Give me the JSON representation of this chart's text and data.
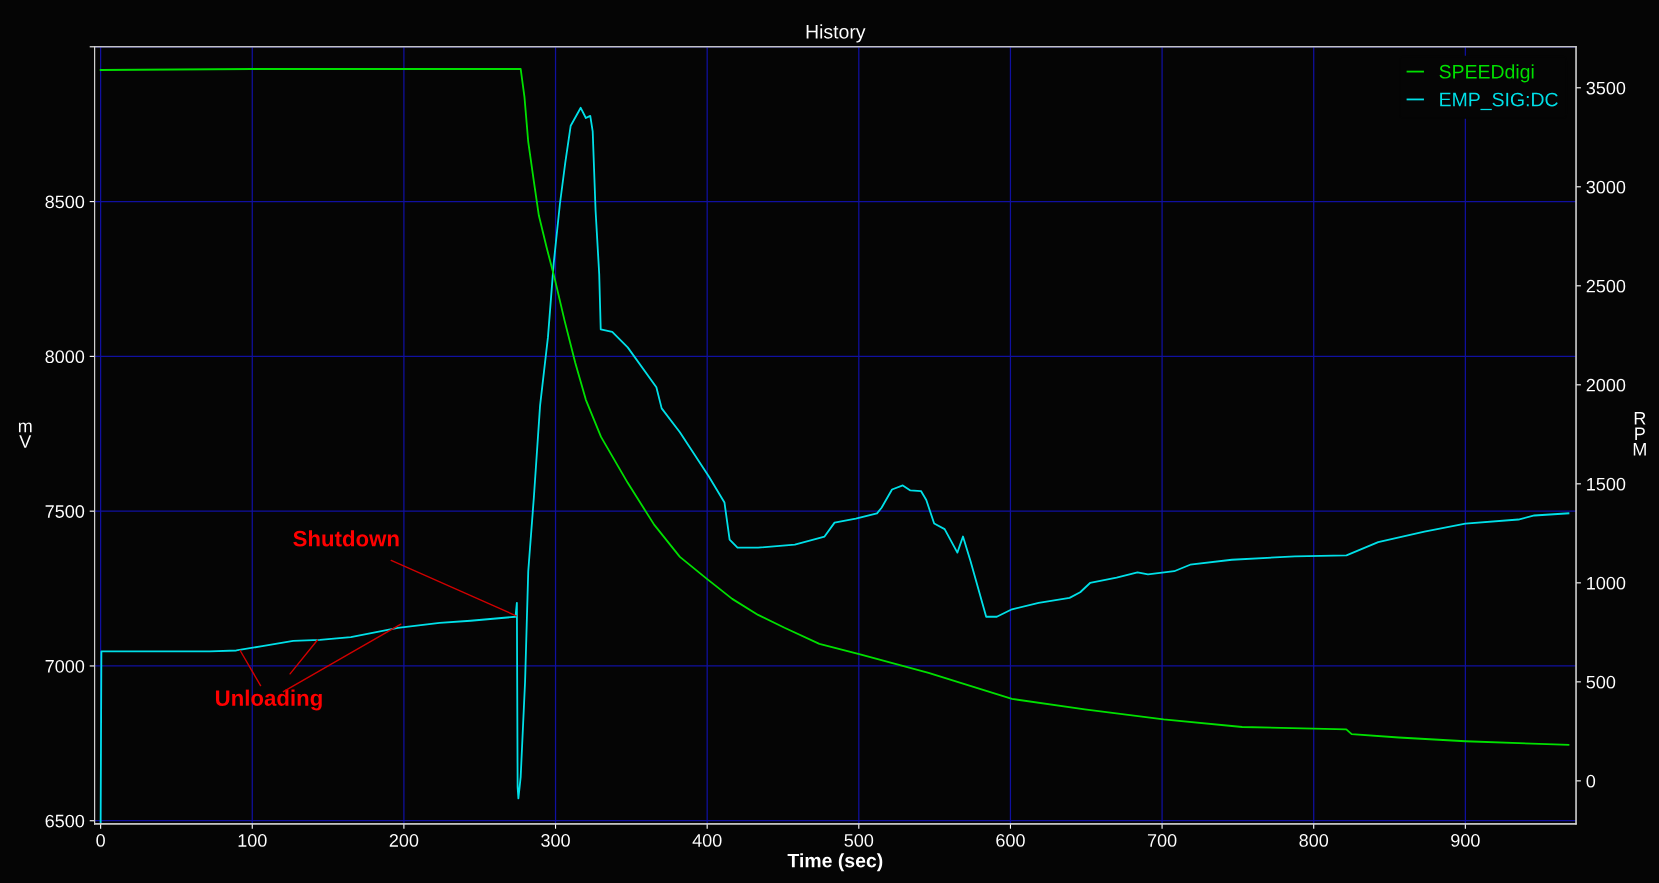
{
  "chart_data": {
    "type": "line",
    "title": "History",
    "xlabel": "Time (sec)",
    "ylabel": "m\nV",
    "y2label": "R\nP\nM",
    "xlim": [
      -4,
      973
    ],
    "xticks": [
      0,
      100,
      200,
      300,
      400,
      500,
      600,
      700,
      800,
      900
    ],
    "ylim": [
      6490,
      9000
    ],
    "yticks": [
      6500,
      7000,
      7500,
      8000,
      8500,
      {
        "value": 9000,
        "label": null
      }
    ],
    "y2lim": [
      -217,
      3707
    ],
    "y2ticks": [
      0,
      500,
      1000,
      1500,
      2000,
      2500,
      3000,
      3500
    ],
    "grid": true,
    "legend": "top right",
    "line_style": "solid",
    "marker": "none",
    "series": [
      {
        "name": "SPEEDdigi",
        "color": "#00e000",
        "axis": "y2",
        "x": [
          0,
          100,
          200,
          277,
          279.5,
          282,
          285.7,
          289,
          294,
          299.5,
          306,
          313,
          320,
          330,
          347.6,
          365,
          382,
          399,
          416.5,
          433.6,
          451,
          474,
          501.5,
          546,
          601,
          649,
          701,
          752.8,
          821.5,
          825,
          856,
          900,
          968
        ],
        "values": [
          3590,
          3595,
          3595,
          3595,
          3454,
          3227,
          3027,
          2855,
          2697,
          2535,
          2323,
          2111,
          1924,
          1737,
          1505,
          1294,
          1131,
          1025,
          919,
          838,
          773,
          692,
          638,
          545,
          414,
          361,
          311,
          272,
          260,
          236,
          219,
          200,
          182
        ]
      },
      {
        "name": "EMP_SIG:DC",
        "color": "#00e0e8",
        "x": [
          0,
          0.5,
          72,
          89.5,
          106.6,
          127,
          144.6,
          165,
          196,
          223.6,
          244,
          273.6,
          274.5,
          275,
          275.5,
          277,
          279.9,
          282,
          285.7,
          289.8,
          295,
          298.8,
          302.9,
          306.4,
          310,
          316.6,
          320,
          322.9,
          324.5,
          326.4,
          328.8,
          329.8,
          337.4,
          347.6,
          366.5,
          370,
          382,
          401,
          411.4,
          414.8,
          420,
          433.6,
          457.8,
          477.4,
          484,
          498,
          512,
          515,
          521.9,
          529,
          534,
          541,
          544.5,
          549.7,
          556.6,
          565,
          568.7,
          573.6,
          584,
          591,
          601,
          618.6,
          639,
          646,
          652.5,
          670,
          683.8,
          690.7,
          708,
          718.5,
          746,
          787.6,
          821.6,
          842.5,
          873,
          900,
          935,
          945.5,
          968
        ],
        "values": [
          6490,
          7047,
          7047,
          7050,
          7064,
          7081,
          7084,
          7093,
          7123,
          7139,
          7146,
          7159,
          7204,
          6608,
          6572,
          6641,
          6948,
          7306,
          7544,
          7841,
          8062,
          8301,
          8493,
          8625,
          8745,
          8803,
          8770,
          8777,
          8727,
          8471,
          8266,
          8087,
          8079,
          8029,
          7900,
          7832,
          7755,
          7613,
          7528,
          7408,
          7382,
          7382,
          7392,
          7418,
          7463,
          7476,
          7493,
          7511,
          7570,
          7583,
          7567,
          7565,
          7536,
          7460,
          7442,
          7366,
          7418,
          7340,
          7159,
          7159,
          7183,
          7204,
          7220,
          7238,
          7268,
          7285,
          7302,
          7296,
          7306,
          7327,
          7343,
          7354,
          7357,
          7400,
          7434,
          7460,
          7473,
          7486,
          7493
        ]
      }
    ],
    "annotations": [
      {
        "text": "Shutdown",
        "x": 274,
        "y": 7162
      },
      {
        "text": "Unloading",
        "x": 143,
        "y": 7084
      }
    ]
  }
}
